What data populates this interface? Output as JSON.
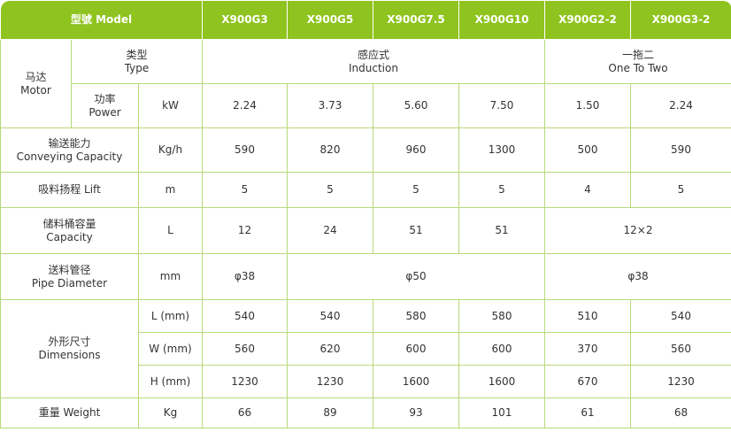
{
  "header": {
    "model_label": "型號 Model",
    "models": [
      "X900G3",
      "X900G5",
      "X900G7.5",
      "X900G10",
      "X900G2-2",
      "X900G3-2"
    ]
  },
  "motor": {
    "label_cn": "马达",
    "label_en": "Motor",
    "type_cn": "类型",
    "type_en": "Type",
    "type_induction_cn": "感应式",
    "type_induction_en": "Induction",
    "type_onetotwo_cn": "一拖二",
    "type_onetotwo_en": "One To Two",
    "power_cn": "功率",
    "power_en": "Power",
    "power_unit": "kW",
    "power_values": [
      "2.24",
      "3.73",
      "5.60",
      "7.50",
      "1.50",
      "2.24"
    ]
  },
  "conveying": {
    "label_cn": "输送能力",
    "label_en": "Conveying Capacity",
    "unit": "Kg/h",
    "values": [
      "590",
      "820",
      "960",
      "1300",
      "500",
      "590"
    ]
  },
  "lift": {
    "label": "吸料扬程 Lift",
    "unit": "m",
    "values": [
      "5",
      "5",
      "5",
      "5",
      "4",
      "5"
    ]
  },
  "capacity": {
    "label_cn": "储料桶容量",
    "label_en": "Capacity",
    "unit": "L",
    "values": [
      "12",
      "24",
      "51",
      "51"
    ],
    "merged_value": "12×2"
  },
  "pipe": {
    "label_cn": "送料管径",
    "label_en": "Pipe Diameter",
    "unit": "mm",
    "value_g3": "φ38",
    "value_mid": "φ50",
    "value_two": "φ38"
  },
  "dimensions": {
    "label_cn": "外形尺寸",
    "label_en": "Dimensions",
    "rows": [
      {
        "unit": "L (mm)",
        "values": [
          "540",
          "540",
          "580",
          "580",
          "510",
          "540"
        ]
      },
      {
        "unit": "W (mm)",
        "values": [
          "560",
          "620",
          "600",
          "600",
          "370",
          "560"
        ]
      },
      {
        "unit": "H (mm)",
        "values": [
          "1230",
          "1230",
          "1600",
          "1600",
          "670",
          "1230"
        ]
      }
    ]
  },
  "weight": {
    "label": "重量 Weight",
    "unit": "Kg",
    "values": [
      "66",
      "89",
      "93",
      "101",
      "61",
      "68"
    ]
  }
}
